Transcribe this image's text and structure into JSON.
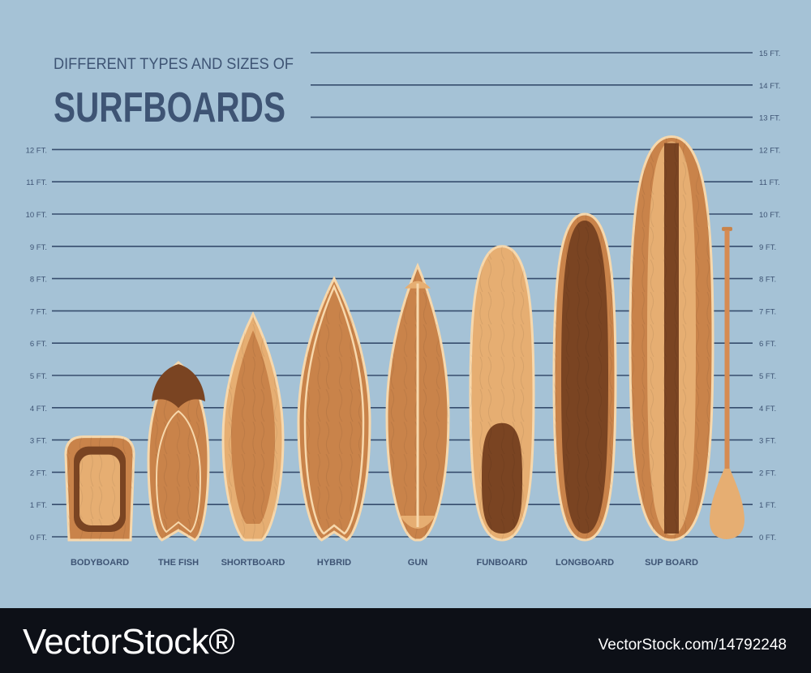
{
  "heading": {
    "subtitle": "DIFFERENT TYPES AND SIZES OF",
    "title": "SURFBOARDS"
  },
  "scale": {
    "left_labels": [
      "0 FT.",
      "1 FT.",
      "2 FT.",
      "3 FT.",
      "4 FT.",
      "5 FT.",
      "6 FT.",
      "7 FT.",
      "8 FT.",
      "9 FT.",
      "10 FT.",
      "11 FT.",
      "12 FT."
    ],
    "right_labels": [
      "0 FT.",
      "1 FT.",
      "2 FT.",
      "3 FT.",
      "4 FT.",
      "5 FT.",
      "6 FT.",
      "7 FT.",
      "8 FT.",
      "9 FT.",
      "10 FT.",
      "11 FT.",
      "12 FT.",
      "13 FT.",
      "14 FT.",
      "15 FT."
    ]
  },
  "boards": [
    {
      "name": "BODYBOARD",
      "length_ft": 3.1
    },
    {
      "name": "THE FISH",
      "length_ft": 5.4
    },
    {
      "name": "SHORTBOARD",
      "length_ft": 6.9
    },
    {
      "name": "HYBRID",
      "length_ft": 8.0
    },
    {
      "name": "GUN",
      "length_ft": 8.4
    },
    {
      "name": "FUNBOARD",
      "length_ft": 9.0
    },
    {
      "name": "LONGBOARD",
      "length_ft": 10.0
    },
    {
      "name": "SUP BOARD",
      "length_ft": 12.4
    }
  ],
  "paddle": {
    "length_ft": 9.6
  },
  "colors": {
    "background": "#a5c2d6",
    "grid_line": "#364d6d",
    "text": "#3e5474",
    "wood_light": "#e6ae72",
    "wood_medium": "#c9834a",
    "wood_dark": "#7a4422",
    "wood_rail": "#f7d8ac",
    "footer": "#0d1017"
  },
  "watermark": {
    "brand": "VectorStock®",
    "url": "VectorStock.com/14792248"
  }
}
